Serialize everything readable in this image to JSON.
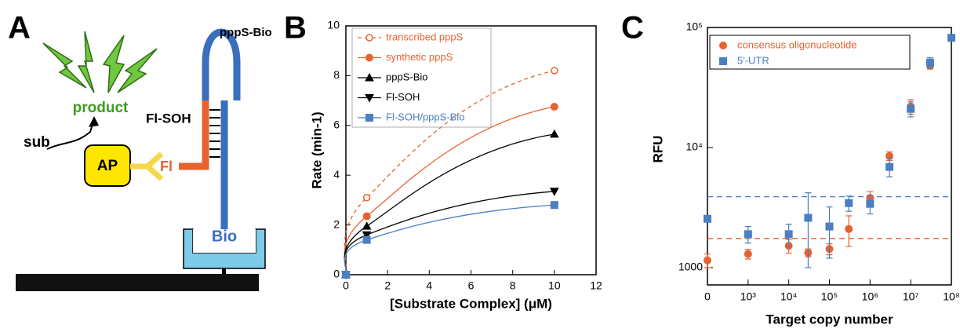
{
  "panel_labels": [
    "A",
    "B",
    "C"
  ],
  "diagram": {
    "probe": "pppS-Bio",
    "product": "product",
    "oligo": "Fl-SOH",
    "substrate": "sub",
    "enzyme": "AP",
    "fluorophore": "Fl",
    "biotin": "Bio"
  },
  "chart_data": [
    {
      "type": "line",
      "xlabel": "[Substrate Complex] (μM)",
      "ylabel": "Rate (min-1)",
      "x": [
        0,
        1,
        10
      ],
      "xlim": [
        0,
        12
      ],
      "xticks": [
        0,
        2,
        4,
        6,
        8,
        10,
        12
      ],
      "ylim": [
        0,
        10
      ],
      "yticks": [
        0,
        2,
        4,
        6,
        8,
        10
      ],
      "series": [
        {
          "name": "transcribed pppS",
          "color": "#e8622f",
          "marker": "open-circle",
          "dashed": true,
          "values": [
            0,
            3.1,
            8.2
          ]
        },
        {
          "name": "synthetic pppS",
          "color": "#e8622f",
          "marker": "circle",
          "dashed": false,
          "values": [
            0,
            2.35,
            6.75
          ]
        },
        {
          "name": "pppS-Bio",
          "color": "#000000",
          "marker": "triangle-up",
          "dashed": false,
          "values": [
            0,
            1.95,
            5.65
          ]
        },
        {
          "name": "Fl-SOH",
          "color": "#000000",
          "marker": "triangle-down",
          "dashed": false,
          "values": [
            0,
            1.6,
            3.35
          ]
        },
        {
          "name": "Fl-SOH/pppS-Bio",
          "color": "#4a7fc1",
          "marker": "square",
          "dashed": false,
          "values": [
            0,
            1.4,
            2.8
          ]
        }
      ]
    },
    {
      "type": "scatter",
      "xlabel": "Target copy number",
      "ylabel": "RFU",
      "log_x": true,
      "log_y": true,
      "x": [
        100,
        1000,
        10000,
        30000,
        100000,
        300000,
        1000000,
        3000000,
        10000000,
        30000000,
        100000000
      ],
      "xlim": [
        100,
        100000000
      ],
      "xticks": [
        {
          "value": 100,
          "label": "0"
        },
        {
          "value": 1000,
          "label": "10³"
        },
        {
          "value": 10000,
          "label": "10⁴"
        },
        {
          "value": 100000,
          "label": "10⁵"
        },
        {
          "value": 1000000,
          "label": "10⁶"
        },
        {
          "value": 10000000,
          "label": "10⁷"
        },
        {
          "value": 100000000,
          "label": "10⁸"
        }
      ],
      "ylim": [
        1000,
        100000
      ],
      "yticks": [
        1000,
        {
          "value": 10000,
          "label": "10⁴"
        },
        {
          "value": 100000,
          "label": "10⁵"
        }
      ],
      "thresholds": [
        {
          "value": 3900,
          "color": "#4a7fc1"
        },
        {
          "value": 1750,
          "color": "#e8622f"
        }
      ],
      "series": [
        {
          "name": "consensus oligonucleotide",
          "color": "#e8622f",
          "marker": "circle",
          "values": [
            1150,
            1300,
            1520,
            1330,
            1430,
            2100,
            3800,
            8500,
            22000,
            48000,
            null
          ],
          "errors": [
            150,
            120,
            200,
            100,
            150,
            600,
            500,
            700,
            3000,
            3000,
            null
          ]
        },
        {
          "name": "5'-UTR",
          "color": "#4a7fc1",
          "marker": "square",
          "values": [
            2550,
            1900,
            1900,
            2600,
            2200,
            3450,
            3400,
            6900,
            21000,
            51000,
            82000
          ],
          "errors": [
            0,
            300,
            400,
            1600,
            1000,
            500,
            600,
            1200,
            3000,
            5000,
            0
          ]
        }
      ]
    }
  ]
}
